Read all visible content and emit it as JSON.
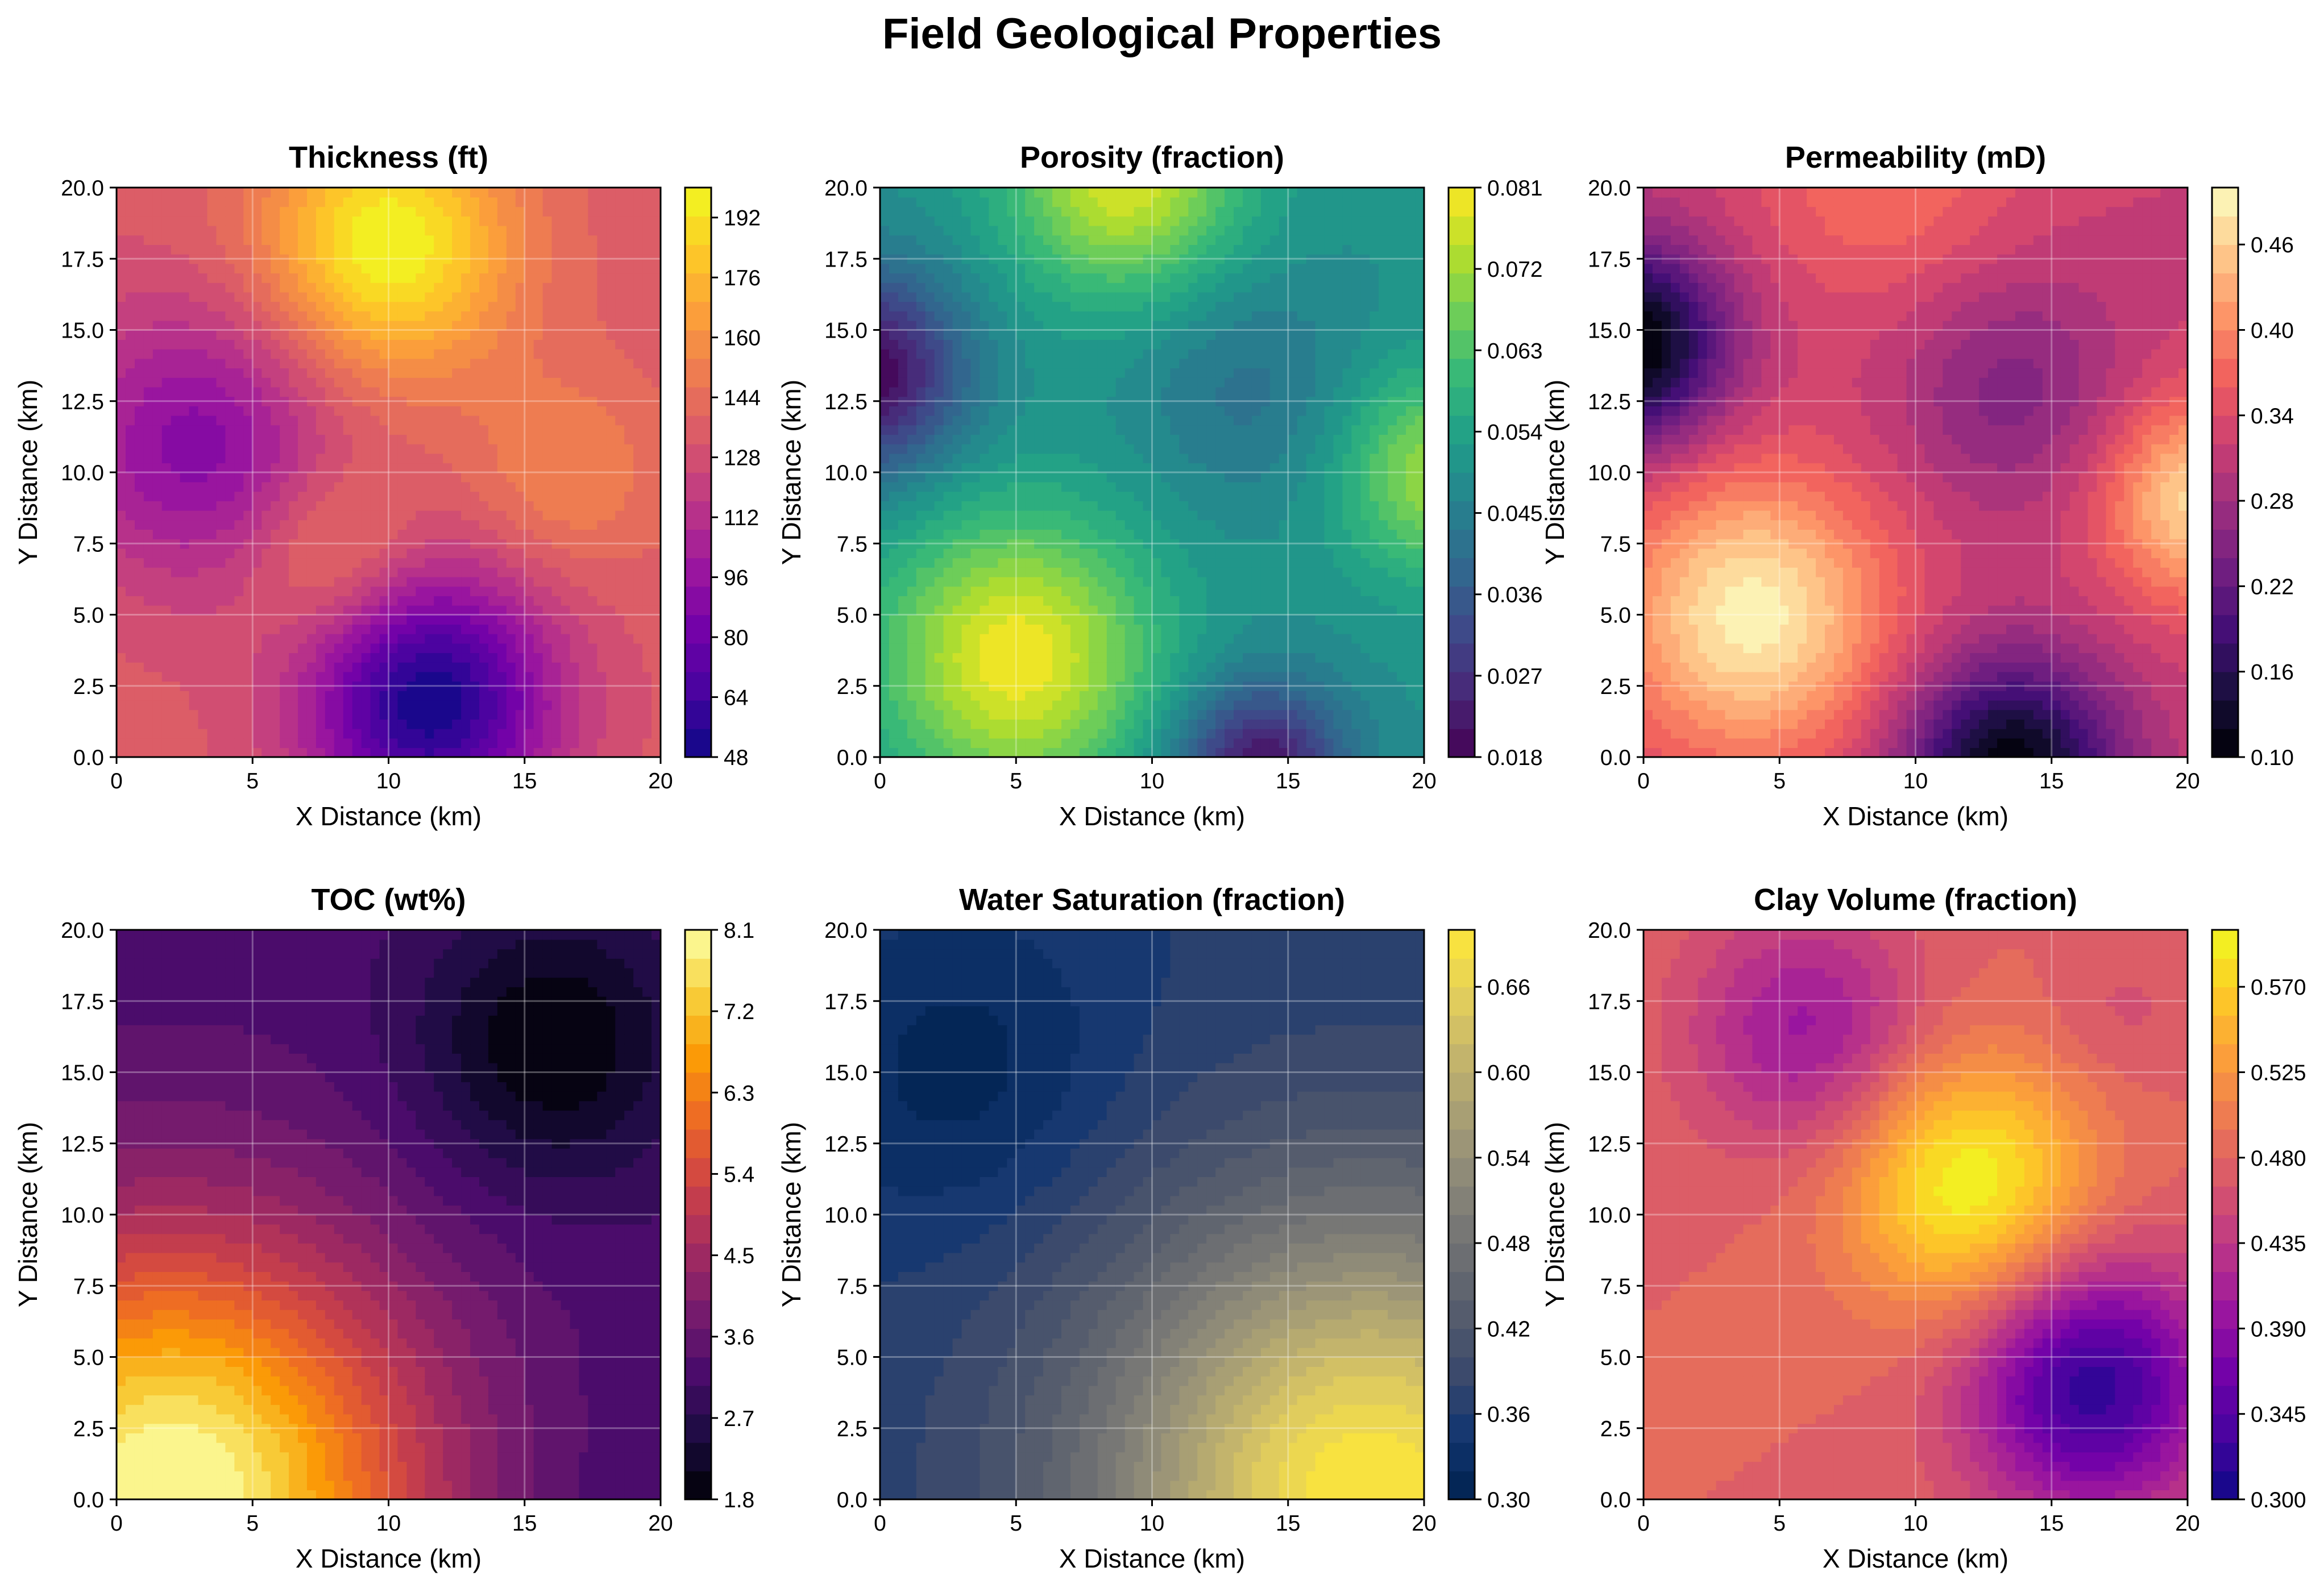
{
  "figure_title": "Field Geological Properties",
  "chart_data": [
    {
      "type": "heatmap",
      "title": "Thickness (ft)",
      "xlabel": "X Distance (km)",
      "ylabel": "Y Distance (km)",
      "xlim": [
        0,
        20
      ],
      "ylim": [
        0,
        20
      ],
      "xticks": [
        "0",
        "5",
        "10",
        "15",
        "20"
      ],
      "yticks": [
        "0.0",
        "2.5",
        "5.0",
        "7.5",
        "10.0",
        "12.5",
        "15.0",
        "17.5",
        "20.0"
      ],
      "grid": true,
      "colormap": "plasma",
      "colorbar": {
        "min": 48,
        "max": 200,
        "ticks": [
          "48",
          "64",
          "80",
          "96",
          "112",
          "128",
          "144",
          "160",
          "176",
          "192"
        ]
      },
      "background": 135,
      "features": [
        {
          "x": 10,
          "y": 18,
          "amplitude": 65,
          "spread": 3.2,
          "label": "high"
        },
        {
          "x": 11.5,
          "y": 2,
          "amplitude": -85,
          "spread": 3.2,
          "label": "low"
        },
        {
          "x": 3,
          "y": 11,
          "amplitude": -45,
          "spread": 3.5,
          "label": "low"
        },
        {
          "x": 16.5,
          "y": 10,
          "amplitude": 20,
          "spread": 2.5,
          "label": "high"
        },
        {
          "x": 8,
          "y": 7,
          "amplitude": 25,
          "spread": 2.2,
          "label": "high"
        }
      ]
    },
    {
      "type": "heatmap",
      "title": "Porosity (fraction)",
      "xlabel": "X Distance (km)",
      "ylabel": "Y Distance (km)",
      "xlim": [
        0,
        20
      ],
      "ylim": [
        0,
        20
      ],
      "xticks": [
        "0",
        "5",
        "10",
        "15",
        "20"
      ],
      "yticks": [
        "0.0",
        "2.5",
        "5.0",
        "7.5",
        "10.0",
        "12.5",
        "15.0",
        "17.5",
        "20.0"
      ],
      "grid": true,
      "colormap": "viridis",
      "colorbar": {
        "min": 0.018,
        "max": 0.081,
        "ticks": [
          "0.018",
          "0.027",
          "0.036",
          "0.045",
          "0.054",
          "0.063",
          "0.072",
          "0.081"
        ]
      },
      "background": 0.05,
      "features": [
        {
          "x": 5,
          "y": 3.5,
          "amplitude": 0.03,
          "spread": 3.5,
          "label": "high"
        },
        {
          "x": 9,
          "y": 20.5,
          "amplitude": 0.028,
          "spread": 3,
          "label": "high"
        },
        {
          "x": 20.5,
          "y": 10,
          "amplitude": 0.022,
          "spread": 2.5,
          "label": "high"
        },
        {
          "x": -0.5,
          "y": 13.5,
          "amplitude": -0.032,
          "spread": 2.5,
          "label": "low"
        },
        {
          "x": 14,
          "y": -0.5,
          "amplitude": -0.03,
          "spread": 2.2,
          "label": "low"
        },
        {
          "x": 13.5,
          "y": 13,
          "amplitude": -0.008,
          "spread": 3,
          "label": "low"
        }
      ]
    },
    {
      "type": "heatmap",
      "title": "Permeability (mD)",
      "xlabel": "X Distance (km)",
      "ylabel": "Y Distance (km)",
      "xlim": [
        0,
        20
      ],
      "ylim": [
        0,
        20
      ],
      "xticks": [
        "0",
        "5",
        "10",
        "15",
        "20"
      ],
      "yticks": [
        "0.0",
        "2.5",
        "5.0",
        "7.5",
        "10.0",
        "12.5",
        "15.0",
        "17.5",
        "20.0"
      ],
      "grid": true,
      "colormap": "magma",
      "colorbar": {
        "min": 0.1,
        "max": 0.5,
        "ticks": [
          "0.10",
          "0.16",
          "0.22",
          "0.28",
          "0.34",
          "0.40",
          "0.46"
        ]
      },
      "background": 0.32,
      "features": [
        {
          "x": 4,
          "y": 5,
          "amplitude": 0.17,
          "spread": 3.5,
          "label": "high"
        },
        {
          "x": 20.5,
          "y": 9,
          "amplitude": 0.15,
          "spread": 2.5,
          "label": "high"
        },
        {
          "x": 13.5,
          "y": -0.5,
          "amplitude": -0.22,
          "spread": 2.8,
          "label": "low"
        },
        {
          "x": -0.5,
          "y": 14.5,
          "amplitude": -0.23,
          "spread": 2.5,
          "label": "low"
        },
        {
          "x": 13.5,
          "y": 13,
          "amplitude": -0.07,
          "spread": 3,
          "label": "low"
        },
        {
          "x": 9,
          "y": 20.5,
          "amplitude": 0.06,
          "spread": 3.5,
          "label": "high"
        }
      ]
    },
    {
      "type": "heatmap",
      "title": "TOC (wt%)",
      "xlabel": "X Distance (km)",
      "ylabel": "Y Distance (km)",
      "xlim": [
        0,
        20
      ],
      "ylim": [
        0,
        20
      ],
      "xticks": [
        "0",
        "5",
        "10",
        "15",
        "20"
      ],
      "yticks": [
        "0.0",
        "2.5",
        "5.0",
        "7.5",
        "10.0",
        "12.5",
        "15.0",
        "17.5",
        "20.0"
      ],
      "grid": true,
      "colormap": "inferno",
      "colorbar": {
        "min": 1.8,
        "max": 8.1,
        "ticks": [
          "1.8",
          "2.7",
          "3.6",
          "4.5",
          "5.4",
          "6.3",
          "7.2",
          "8.1"
        ]
      },
      "background": 3.2,
      "features": [
        {
          "x": 2,
          "y": 0,
          "amplitude": 5.0,
          "spread": 6.5,
          "label": "high"
        },
        {
          "x": 16,
          "y": 16,
          "amplitude": -1.4,
          "spread": 3.5,
          "label": "low"
        },
        {
          "x": 20,
          "y": 0,
          "amplitude": -0.2,
          "spread": 4,
          "label": "low"
        }
      ]
    },
    {
      "type": "heatmap",
      "title": "Water Saturation (fraction)",
      "xlabel": "X Distance (km)",
      "ylabel": "Y Distance (km)",
      "xlim": [
        0,
        20
      ],
      "ylim": [
        0,
        20
      ],
      "xticks": [
        "0",
        "5",
        "10",
        "15",
        "20"
      ],
      "yticks": [
        "0.0",
        "2.5",
        "5.0",
        "7.5",
        "10.0",
        "12.5",
        "15.0",
        "17.5",
        "20.0"
      ],
      "grid": true,
      "colormap": "cividis",
      "colorbar": {
        "min": 0.3,
        "max": 0.7,
        "ticks": [
          "0.30",
          "0.36",
          "0.42",
          "0.48",
          "0.54",
          "0.60",
          "0.66"
        ]
      },
      "background": 0.36,
      "features": [
        {
          "x": 18,
          "y": 0,
          "amplitude": 0.34,
          "spread": 7,
          "label": "high"
        },
        {
          "x": 3,
          "y": 15,
          "amplitude": -0.05,
          "spread": 4,
          "label": "low"
        }
      ]
    },
    {
      "type": "heatmap",
      "title": "Clay Volume (fraction)",
      "xlabel": "X Distance (km)",
      "ylabel": "Y Distance (km)",
      "xlim": [
        0,
        20
      ],
      "ylim": [
        0,
        20
      ],
      "xticks": [
        "0",
        "5",
        "10",
        "15",
        "20"
      ],
      "yticks": [
        "0.0",
        "2.5",
        "5.0",
        "7.5",
        "10.0",
        "12.5",
        "15.0",
        "17.5",
        "20.0"
      ],
      "grid": true,
      "colormap": "plasma",
      "colorbar": {
        "min": 0.3,
        "max": 0.6,
        "ticks": [
          "0.300",
          "0.345",
          "0.390",
          "0.435",
          "0.480",
          "0.525",
          "0.570"
        ]
      },
      "background": 0.48,
      "features": [
        {
          "x": 12,
          "y": 11,
          "amplitude": 0.12,
          "spread": 3.2,
          "label": "high"
        },
        {
          "x": 16.5,
          "y": 4,
          "amplitude": -0.16,
          "spread": 3.2,
          "label": "low"
        },
        {
          "x": 6,
          "y": 16.5,
          "amplitude": -0.08,
          "spread": 3,
          "label": "low"
        },
        {
          "x": 17.5,
          "y": 17,
          "amplitude": -0.02,
          "spread": 2,
          "label": "low"
        }
      ]
    }
  ],
  "colormaps": {
    "plasma": [
      "#0d0887",
      "#46039f",
      "#7201a8",
      "#9c179e",
      "#bd3786",
      "#d8576b",
      "#ed7953",
      "#fb9f3a",
      "#fdca26",
      "#f0f921"
    ],
    "viridis": [
      "#440154",
      "#482878",
      "#3e4989",
      "#31688e",
      "#26828e",
      "#1f9e89",
      "#35b779",
      "#6ece58",
      "#b5de2b",
      "#fde725"
    ],
    "magma": [
      "#000004",
      "#180f3d",
      "#440f76",
      "#721f81",
      "#9e2f7f",
      "#cd4071",
      "#f1605d",
      "#fd9668",
      "#feca8d",
      "#fcfdbf"
    ],
    "inferno": [
      "#000004",
      "#1b0c41",
      "#4a0c6b",
      "#781c6d",
      "#a52c60",
      "#cf4446",
      "#ed6925",
      "#fb9b06",
      "#f7d13d",
      "#fcffa4"
    ],
    "cividis": [
      "#00224e",
      "#123570",
      "#3b496c",
      "#575d6d",
      "#707173",
      "#8a8779",
      "#a69d75",
      "#c4b56c",
      "#e4cf5b",
      "#fee838"
    ]
  }
}
